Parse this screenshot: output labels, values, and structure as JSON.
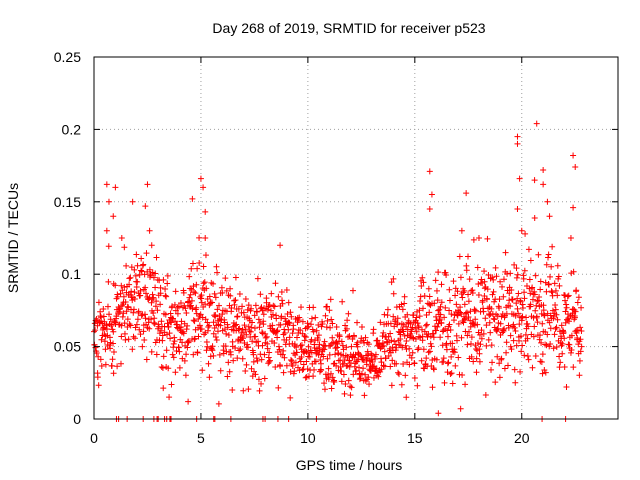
{
  "chart_data": {
    "type": "scatter",
    "title": "Day 268 of 2019, SRMTID for receiver p523",
    "xlabel": "GPS time / hours",
    "ylabel": "SRMTID / TECUs",
    "xlim": [
      0,
      24.5
    ],
    "ylim": [
      0,
      0.25
    ],
    "x_ticks": [
      0,
      5,
      10,
      15,
      20
    ],
    "x_tick_labels": [
      "0",
      "5",
      "10",
      "15",
      "20"
    ],
    "y_ticks": [
      0,
      0.05,
      0.1,
      0.15,
      0.2,
      0.25
    ],
    "y_tick_labels": [
      "0",
      "0.05",
      "0.1",
      "0.15",
      "0.2",
      "0.25"
    ],
    "grid": true,
    "legend": "none",
    "marker": "+",
    "series": [
      {
        "name": "SRMTID",
        "color": "#ff0000",
        "trend": [
          {
            "t": 0.0,
            "mean": 0.058,
            "spread": 0.012
          },
          {
            "t": 0.5,
            "mean": 0.06,
            "spread": 0.016
          },
          {
            "t": 1.0,
            "mean": 0.07,
            "spread": 0.02
          },
          {
            "t": 1.5,
            "mean": 0.08,
            "spread": 0.018
          },
          {
            "t": 2.0,
            "mean": 0.082,
            "spread": 0.018
          },
          {
            "t": 2.5,
            "mean": 0.09,
            "spread": 0.022
          },
          {
            "t": 3.0,
            "mean": 0.07,
            "spread": 0.02
          },
          {
            "t": 3.5,
            "mean": 0.06,
            "spread": 0.016
          },
          {
            "t": 4.0,
            "mean": 0.058,
            "spread": 0.016
          },
          {
            "t": 4.5,
            "mean": 0.07,
            "spread": 0.02
          },
          {
            "t": 5.0,
            "mean": 0.078,
            "spread": 0.022
          },
          {
            "t": 5.5,
            "mean": 0.07,
            "spread": 0.018
          },
          {
            "t": 6.0,
            "mean": 0.065,
            "spread": 0.016
          },
          {
            "t": 7.0,
            "mean": 0.06,
            "spread": 0.016
          },
          {
            "t": 8.0,
            "mean": 0.06,
            "spread": 0.016
          },
          {
            "t": 9.0,
            "mean": 0.055,
            "spread": 0.014
          },
          {
            "t": 10.0,
            "mean": 0.05,
            "spread": 0.014
          },
          {
            "t": 11.0,
            "mean": 0.048,
            "spread": 0.014
          },
          {
            "t": 12.0,
            "mean": 0.042,
            "spread": 0.012
          },
          {
            "t": 12.8,
            "mean": 0.036,
            "spread": 0.01
          },
          {
            "t": 13.5,
            "mean": 0.05,
            "spread": 0.012
          },
          {
            "t": 14.5,
            "mean": 0.058,
            "spread": 0.014
          },
          {
            "t": 15.5,
            "mean": 0.06,
            "spread": 0.016
          },
          {
            "t": 16.5,
            "mean": 0.065,
            "spread": 0.018
          },
          {
            "t": 17.5,
            "mean": 0.072,
            "spread": 0.02
          },
          {
            "t": 18.5,
            "mean": 0.07,
            "spread": 0.02
          },
          {
            "t": 19.5,
            "mean": 0.068,
            "spread": 0.02
          },
          {
            "t": 20.5,
            "mean": 0.075,
            "spread": 0.022
          },
          {
            "t": 21.5,
            "mean": 0.068,
            "spread": 0.02
          },
          {
            "t": 22.8,
            "mean": 0.062,
            "spread": 0.016
          }
        ],
        "n_bulk_points": 1600,
        "outliers": [
          {
            "x": 0.6,
            "y": 0.162
          },
          {
            "x": 0.7,
            "y": 0.15
          },
          {
            "x": 0.9,
            "y": 0.14
          },
          {
            "x": 1.0,
            "y": 0.16
          },
          {
            "x": 0.6,
            "y": 0.13
          },
          {
            "x": 1.3,
            "y": 0.125
          },
          {
            "x": 2.4,
            "y": 0.147
          },
          {
            "x": 2.5,
            "y": 0.162
          },
          {
            "x": 2.6,
            "y": 0.13
          },
          {
            "x": 2.7,
            "y": 0.12
          },
          {
            "x": 4.6,
            "y": 0.152
          },
          {
            "x": 5.0,
            "y": 0.166
          },
          {
            "x": 5.1,
            "y": 0.16
          },
          {
            "x": 5.2,
            "y": 0.143
          },
          {
            "x": 5.2,
            "y": 0.125
          },
          {
            "x": 8.7,
            "y": 0.12
          },
          {
            "x": 15.7,
            "y": 0.171
          },
          {
            "x": 15.8,
            "y": 0.155
          },
          {
            "x": 15.7,
            "y": 0.145
          },
          {
            "x": 17.4,
            "y": 0.156
          },
          {
            "x": 17.2,
            "y": 0.13
          },
          {
            "x": 18.0,
            "y": 0.125
          },
          {
            "x": 19.8,
            "y": 0.195
          },
          {
            "x": 19.8,
            "y": 0.19
          },
          {
            "x": 19.9,
            "y": 0.166
          },
          {
            "x": 19.8,
            "y": 0.145
          },
          {
            "x": 20.0,
            "y": 0.13
          },
          {
            "x": 20.7,
            "y": 0.204
          },
          {
            "x": 20.6,
            "y": 0.165
          },
          {
            "x": 21.0,
            "y": 0.172
          },
          {
            "x": 21.0,
            "y": 0.162
          },
          {
            "x": 21.2,
            "y": 0.15
          },
          {
            "x": 21.3,
            "y": 0.14
          },
          {
            "x": 22.4,
            "y": 0.182
          },
          {
            "x": 22.5,
            "y": 0.174
          },
          {
            "x": 22.4,
            "y": 0.146
          },
          {
            "x": 22.3,
            "y": 0.125
          },
          {
            "x": 4.4,
            "y": 0.012
          },
          {
            "x": 14.6,
            "y": 0.015
          },
          {
            "x": 16.1,
            "y": 0.004
          }
        ],
        "zero_points_x": [
          1.05,
          1.15,
          1.55,
          2.3,
          2.8,
          2.95,
          3.0,
          3.3,
          3.4,
          3.55,
          3.6,
          4.8,
          5.6,
          5.65,
          6.4,
          7.9,
          8.0,
          8.6,
          9.1,
          10.4,
          20.95,
          22.05
        ]
      }
    ]
  }
}
